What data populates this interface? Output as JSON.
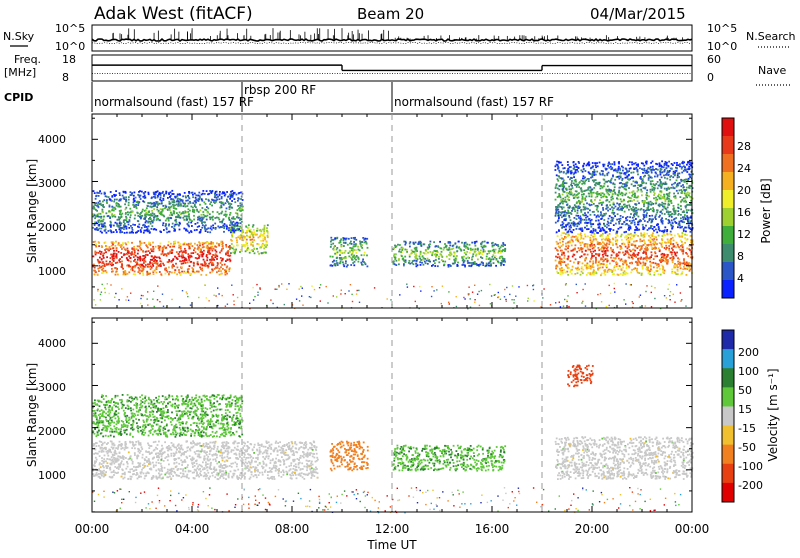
{
  "header": {
    "station": "Adak West (fitACF)",
    "beam": "Beam 20",
    "date": "04/Mar/2015"
  },
  "params": {
    "nsky_label": "N.Sky",
    "nsearch_label": "N.Search",
    "freq_label_1": "Freq.",
    "freq_label_2": "[MHz]",
    "nave_label": "Nave",
    "cpid_label": "CPID",
    "nsky_ticks": [
      "10^5",
      "10^0"
    ],
    "nsearch_ticks": [
      "10^5",
      "10^0"
    ],
    "freq_ticks": [
      "18",
      "8"
    ],
    "nave_ticks": [
      "60",
      "0"
    ],
    "freq_segments": [
      {
        "start": 0,
        "end": 10,
        "freq": 14.2
      },
      {
        "start": 10,
        "end": 18,
        "freq": 12.0
      },
      {
        "start": 18,
        "end": 24,
        "freq": 14.0
      }
    ],
    "nave_level": 16
  },
  "cpid_segments": [
    {
      "start": 0,
      "end": 6,
      "label": "normalsound (fast) 157 RF"
    },
    {
      "start": 6,
      "end": 12,
      "label": "rbsp 200 RF"
    },
    {
      "start": 12,
      "end": 24,
      "label": "normalsound (fast) 157 RF"
    }
  ],
  "xaxis": {
    "title": "Time UT",
    "range": [
      0,
      24
    ],
    "ticks": [
      "00:00",
      "04:00",
      "08:00",
      "12:00",
      "16:00",
      "20:00",
      "00:00"
    ]
  },
  "power_panel": {
    "ylabel": "Slant Range [km]",
    "yticks": [
      "1000",
      "2000",
      "3000",
      "4000"
    ],
    "colorbar_label": "Power [dB]",
    "colorbar_ticks": [
      "4",
      "8",
      "12",
      "16",
      "20",
      "24",
      "28"
    ],
    "colors": [
      "#0a22ff",
      "#2a56c8",
      "#3d8c6e",
      "#3fae3a",
      "#9dd030",
      "#f0ee2a",
      "#f5b021",
      "#ee7020",
      "#e83a1a",
      "#e01010"
    ]
  },
  "velocity_panel": {
    "ylabel": "Slant Range [km]",
    "yticks": [
      "1000",
      "2000",
      "3000",
      "4000"
    ],
    "colorbar_label": "Velocity [m s⁻¹]",
    "colorbar_ticks": [
      "200",
      "100",
      "50",
      "15",
      "-15",
      "-50",
      "-100",
      "-200"
    ],
    "colors": [
      "#1e2aa8",
      "#2aa0d8",
      "#2a8030",
      "#5ec83a",
      "#c8c8c8",
      "#f0c030",
      "#f08020",
      "#e84010",
      "#e00000"
    ]
  },
  "chart_data": [
    {
      "type": "heatmap",
      "title": "Power",
      "xlabel": "Time UT",
      "ylabel": "Slant Range [km]",
      "xlim": [
        0,
        24
      ],
      "ylim": [
        0,
        4600
      ],
      "colorbar": {
        "label": "Power [dB]",
        "range": [
          0,
          32
        ],
        "ticks": [
          4,
          8,
          12,
          16,
          20,
          24,
          28
        ]
      },
      "scatter_regions": [
        {
          "t_start": 0,
          "t_end": 5.5,
          "range_start": 800,
          "range_end": 1600,
          "power": 28
        },
        {
          "t_start": 5.5,
          "t_end": 7,
          "range_start": 1300,
          "range_end": 2000,
          "power": 20
        },
        {
          "t_start": 0,
          "t_end": 6,
          "range_start": 1800,
          "range_end": 2800,
          "power": 10
        },
        {
          "t_start": 9.5,
          "t_end": 11,
          "range_start": 1000,
          "range_end": 1700,
          "power": 12
        },
        {
          "t_start": 12,
          "t_end": 16.5,
          "range_start": 1000,
          "range_end": 1600,
          "power": 14
        },
        {
          "t_start": 18.5,
          "t_end": 24,
          "range_start": 800,
          "range_end": 1800,
          "power": 26
        },
        {
          "t_start": 18.5,
          "t_end": 24,
          "range_start": 1800,
          "range_end": 3500,
          "power": 10
        }
      ]
    },
    {
      "type": "heatmap",
      "title": "Velocity",
      "xlabel": "Time UT",
      "ylabel": "Slant Range [km]",
      "xlim": [
        0,
        24
      ],
      "ylim": [
        0,
        4600
      ],
      "colorbar": {
        "label": "Velocity [m s-1]",
        "range": [
          -250,
          250
        ],
        "ticks": [
          200,
          100,
          50,
          15,
          -15,
          -50,
          -100,
          -200
        ]
      },
      "scatter_regions": [
        {
          "t_start": 0,
          "t_end": 9,
          "range_start": 800,
          "range_end": 1700,
          "velocity": 0
        },
        {
          "t_start": 0,
          "t_end": 6,
          "range_start": 1800,
          "range_end": 2800,
          "velocity": 40
        },
        {
          "t_start": 9.5,
          "t_end": 11,
          "range_start": 1000,
          "range_end": 1700,
          "velocity": -80
        },
        {
          "t_start": 12,
          "t_end": 16.5,
          "range_start": 1000,
          "range_end": 1600,
          "velocity": 40
        },
        {
          "t_start": 18.5,
          "t_end": 24,
          "range_start": 800,
          "range_end": 1800,
          "velocity": 0
        },
        {
          "t_start": 19,
          "t_end": 20,
          "range_start": 3000,
          "range_end": 3500,
          "velocity": -150
        }
      ]
    }
  ]
}
